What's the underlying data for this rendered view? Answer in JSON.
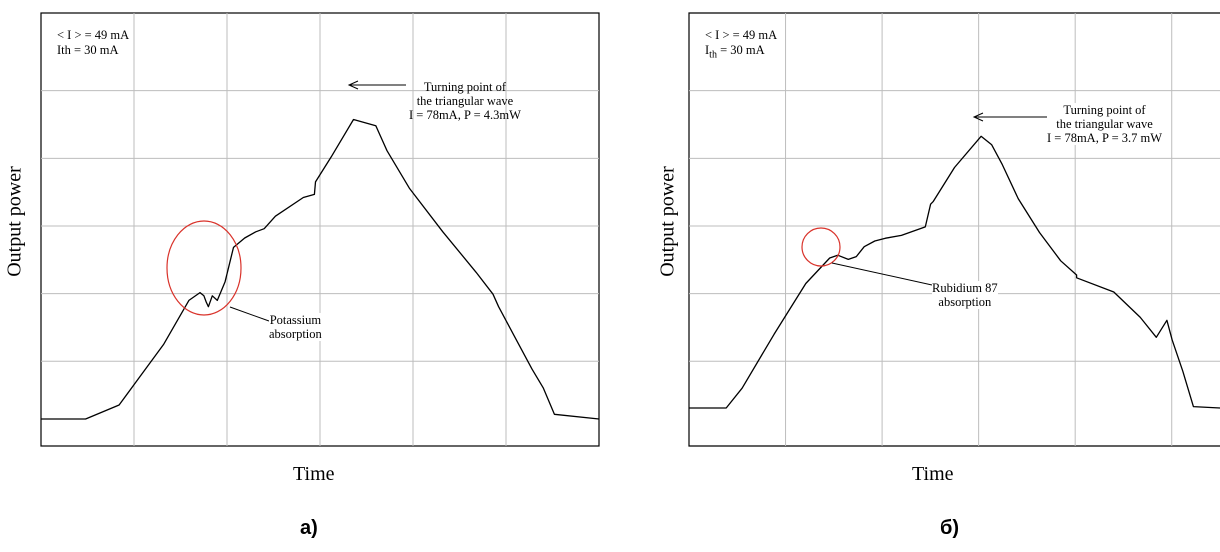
{
  "chart_data": [
    {
      "type": "line",
      "panel_label": "а)",
      "xlabel": "Time",
      "ylabel": "Output power",
      "grid": true,
      "params": [
        "< I > = 49 mA",
        "Ith = 30 mA"
      ],
      "annotations": {
        "turning_point": [
          "Turning point of",
          "the triangular wave",
          "I = 78mA, P = 4.3mW"
        ],
        "absorption": [
          "Potassium",
          "absorption"
        ]
      },
      "series": [
        {
          "x": [
            0,
            0.08,
            0.14,
            0.22,
            0.265,
            0.285,
            0.292,
            0.296,
            0.3,
            0.307,
            0.316,
            0.33,
            0.345,
            0.365,
            0.385,
            0.4,
            0.42,
            0.47,
            0.49,
            0.492,
            0.52,
            0.56,
            0.6,
            0.62,
            0.66,
            0.72,
            0.78,
            0.81,
            0.82,
            0.85,
            0.88,
            0.9,
            0.92,
            1.0
          ],
          "y": [
            0.0,
            0.0,
            0.045,
            0.24,
            0.38,
            0.405,
            0.395,
            0.375,
            0.36,
            0.395,
            0.38,
            0.44,
            0.55,
            0.58,
            0.6,
            0.61,
            0.65,
            0.71,
            0.72,
            0.76,
            0.84,
            0.96,
            0.94,
            0.86,
            0.74,
            0.6,
            0.47,
            0.4,
            0.36,
            0.26,
            0.16,
            0.1,
            0.015,
            0.0
          ]
        }
      ]
    },
    {
      "type": "line",
      "panel_label": "б)",
      "xlabel": "Time",
      "ylabel": "Output power",
      "grid": true,
      "params": [
        "< I > = 49 mA",
        "I",
        "th",
        " = 30 mA"
      ],
      "annotations": {
        "turning_point": [
          "Turning point of",
          "the triangular wave",
          "I = 78mA, P = 3.7 mW"
        ],
        "absorption": [
          "Rubidium 87",
          "absorption"
        ]
      },
      "series": [
        {
          "x": [
            0,
            0.07,
            0.1,
            0.16,
            0.22,
            0.265,
            0.28,
            0.3,
            0.315,
            0.33,
            0.35,
            0.37,
            0.4,
            0.445,
            0.455,
            0.46,
            0.5,
            0.55,
            0.57,
            0.59,
            0.62,
            0.66,
            0.7,
            0.73,
            0.73,
            0.8,
            0.85,
            0.88,
            0.9,
            0.91,
            0.93,
            0.95,
            1.0
          ],
          "y": [
            0.0,
            0.0,
            0.07,
            0.26,
            0.44,
            0.53,
            0.54,
            0.525,
            0.535,
            0.57,
            0.59,
            0.6,
            0.61,
            0.64,
            0.72,
            0.73,
            0.85,
            0.96,
            0.93,
            0.86,
            0.74,
            0.62,
            0.52,
            0.47,
            0.46,
            0.41,
            0.32,
            0.25,
            0.31,
            0.24,
            0.13,
            0.005,
            0.0
          ]
        }
      ]
    }
  ]
}
